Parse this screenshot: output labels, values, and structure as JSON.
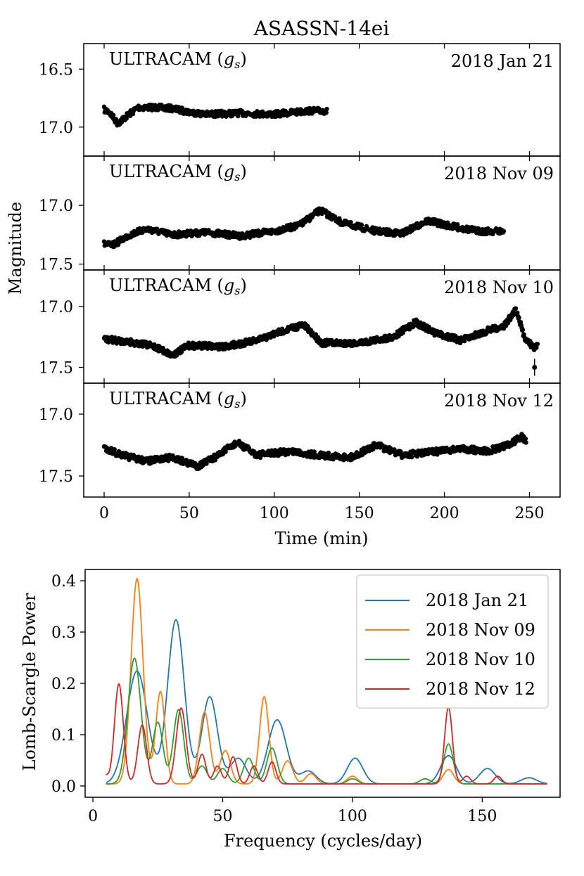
{
  "chart_data": [
    {
      "type": "scatter",
      "title": "ASASSN-14ei",
      "ylabel": "Magnitude",
      "xlabel": "Time (min)",
      "xlim": [
        -12,
        268
      ],
      "xticks": [
        0,
        50,
        100,
        150,
        200,
        250
      ],
      "shared_x": true,
      "y_inverted": true,
      "panels": [
        {
          "instrument": "ULTRACAM (g_s)",
          "instrument_text": "ULTRACAM (",
          "filter_symbol": "g",
          "filter_subscript": "s",
          "date": "2018 Jan 21",
          "ylim": [
            17.25,
            16.28
          ],
          "yticks": [
            16.5,
            17.0
          ],
          "ytick_labels": [
            "16.5",
            "17.0"
          ],
          "x_range": [
            0,
            131
          ],
          "base_magnitude": 16.88,
          "key_points": [
            [
              0,
              16.85
            ],
            [
              3,
              16.87
            ],
            [
              8,
              16.97
            ],
            [
              12,
              16.92
            ],
            [
              20,
              16.83
            ],
            [
              30,
              16.83
            ],
            [
              40,
              16.84
            ],
            [
              50,
              16.87
            ],
            [
              60,
              16.89
            ],
            [
              80,
              16.88
            ],
            [
              100,
              16.89
            ],
            [
              120,
              16.86
            ],
            [
              131,
              16.86
            ]
          ]
        },
        {
          "instrument": "ULTRACAM (g_s)",
          "instrument_text": "ULTRACAM (",
          "filter_symbol": "g",
          "filter_subscript": "s",
          "date": "2018 Nov 09",
          "ylim": [
            17.55,
            16.58
          ],
          "yticks": [
            17.0,
            17.5
          ],
          "ytick_labels": [
            "17.0",
            "17.5"
          ],
          "x_range": [
            0,
            235
          ],
          "base_magnitude": 17.25,
          "key_points": [
            [
              0,
              17.33
            ],
            [
              5,
              17.34
            ],
            [
              15,
              17.25
            ],
            [
              25,
              17.2
            ],
            [
              40,
              17.25
            ],
            [
              60,
              17.23
            ],
            [
              80,
              17.26
            ],
            [
              100,
              17.22
            ],
            [
              115,
              17.17
            ],
            [
              127,
              17.04
            ],
            [
              140,
              17.15
            ],
            [
              160,
              17.22
            ],
            [
              175,
              17.24
            ],
            [
              190,
              17.13
            ],
            [
              205,
              17.18
            ],
            [
              220,
              17.22
            ],
            [
              235,
              17.22
            ]
          ]
        },
        {
          "instrument": "ULTRACAM (g_s)",
          "instrument_text": "ULTRACAM (",
          "filter_symbol": "g",
          "filter_subscript": "s",
          "date": "2018 Nov 10",
          "ylim": [
            17.63,
            16.7
          ],
          "yticks": [
            17.0,
            17.5
          ],
          "ytick_labels": [
            "17.0",
            "17.5"
          ],
          "x_range": [
            0,
            255
          ],
          "base_magnitude": 17.3,
          "key_points": [
            [
              0,
              17.27
            ],
            [
              15,
              17.29
            ],
            [
              30,
              17.33
            ],
            [
              40,
              17.4
            ],
            [
              50,
              17.32
            ],
            [
              70,
              17.33
            ],
            [
              90,
              17.28
            ],
            [
              105,
              17.2
            ],
            [
              117,
              17.15
            ],
            [
              128,
              17.3
            ],
            [
              150,
              17.3
            ],
            [
              170,
              17.25
            ],
            [
              183,
              17.13
            ],
            [
              195,
              17.22
            ],
            [
              210,
              17.28
            ],
            [
              225,
              17.2
            ],
            [
              235,
              17.16
            ],
            [
              242,
              17.03
            ],
            [
              247,
              17.25
            ],
            [
              253,
              17.35
            ],
            [
              255,
              17.3
            ]
          ],
          "outliers": [
            [
              253,
              17.5
            ]
          ]
        },
        {
          "instrument": "ULTRACAM (g_s)",
          "instrument_text": "ULTRACAM (",
          "filter_symbol": "g",
          "filter_subscript": "s",
          "date": "2018 Nov 12",
          "ylim": [
            17.67,
            16.75
          ],
          "yticks": [
            17.0,
            17.5
          ],
          "ytick_labels": [
            "17.0",
            "17.5"
          ],
          "x_range": [
            0,
            248
          ],
          "base_magnitude": 17.32,
          "key_points": [
            [
              0,
              17.27
            ],
            [
              10,
              17.33
            ],
            [
              25,
              17.38
            ],
            [
              40,
              17.35
            ],
            [
              55,
              17.42
            ],
            [
              65,
              17.35
            ],
            [
              78,
              17.23
            ],
            [
              90,
              17.33
            ],
            [
              110,
              17.3
            ],
            [
              125,
              17.33
            ],
            [
              145,
              17.35
            ],
            [
              160,
              17.25
            ],
            [
              175,
              17.33
            ],
            [
              190,
              17.31
            ],
            [
              210,
              17.28
            ],
            [
              225,
              17.3
            ],
            [
              238,
              17.25
            ],
            [
              245,
              17.18
            ],
            [
              248,
              17.22
            ]
          ]
        }
      ]
    },
    {
      "type": "line",
      "xlabel": "Frequency (cycles/day)",
      "ylabel": "Lomb-Scargle Power",
      "xlim": [
        -3,
        180
      ],
      "ylim": [
        -0.022,
        0.422
      ],
      "xticks": [
        0,
        50,
        100,
        150
      ],
      "yticks": [
        0.0,
        0.1,
        0.2,
        0.3,
        0.4
      ],
      "ytick_labels": [
        "0.0",
        "0.1",
        "0.2",
        "0.3",
        "0.4"
      ],
      "x_range": [
        5,
        175
      ],
      "legend_location": "upper right",
      "series": [
        {
          "name": "2018 Jan 21",
          "color": "#1f77b4",
          "peaks": [
            [
              17,
              0.22,
              4
            ],
            [
              32,
              0.32,
              3.2
            ],
            [
              45,
              0.17,
              3
            ],
            [
              56,
              0.05,
              3
            ],
            [
              71,
              0.125,
              3.5
            ],
            [
              83,
              0.025,
              3
            ],
            [
              101,
              0.05,
              3
            ],
            [
              137,
              0.055,
              3
            ],
            [
              152,
              0.03,
              3
            ],
            [
              168,
              0.012,
              3
            ]
          ]
        },
        {
          "name": "2018 Nov 09",
          "color": "#ff7f0e",
          "peaks": [
            [
              17,
              0.4,
              2.3
            ],
            [
              26,
              0.18,
              1.8
            ],
            [
              43,
              0.14,
              2
            ],
            [
              51,
              0.065,
              2
            ],
            [
              66,
              0.17,
              1.8
            ],
            [
              75,
              0.045,
              2
            ],
            [
              84,
              0.02,
              2
            ],
            [
              100,
              0.015,
              2
            ],
            [
              137,
              0.028,
              2
            ]
          ]
        },
        {
          "name": "2018 Nov 10",
          "color": "#2ca02c",
          "peaks": [
            [
              16,
              0.245,
              2.5
            ],
            [
              25,
              0.12,
              2
            ],
            [
              33,
              0.145,
              2
            ],
            [
              42,
              0.035,
              2
            ],
            [
              50,
              0.03,
              2
            ],
            [
              60,
              0.05,
              2
            ],
            [
              69,
              0.07,
              2
            ],
            [
              100,
              0.01,
              2
            ],
            [
              128,
              0.01,
              2
            ],
            [
              137,
              0.078,
              1.8
            ]
          ]
        },
        {
          "name": "2018 Nov 12",
          "color": "#d62728",
          "peaks": [
            [
              5,
              0.015,
              1
            ],
            [
              10,
              0.195,
              1.7
            ],
            [
              19,
              0.115,
              1.7
            ],
            [
              34,
              0.148,
              1.9
            ],
            [
              42,
              0.058,
              1.5
            ],
            [
              48,
              0.035,
              1.5
            ],
            [
              54,
              0.053,
              1.5
            ],
            [
              62,
              0.035,
              1.5
            ],
            [
              69,
              0.043,
              1.5
            ],
            [
              137,
              0.15,
              1.5
            ],
            [
              144,
              0.015,
              1.5
            ],
            [
              156,
              0.015,
              1.5
            ]
          ]
        }
      ]
    }
  ]
}
